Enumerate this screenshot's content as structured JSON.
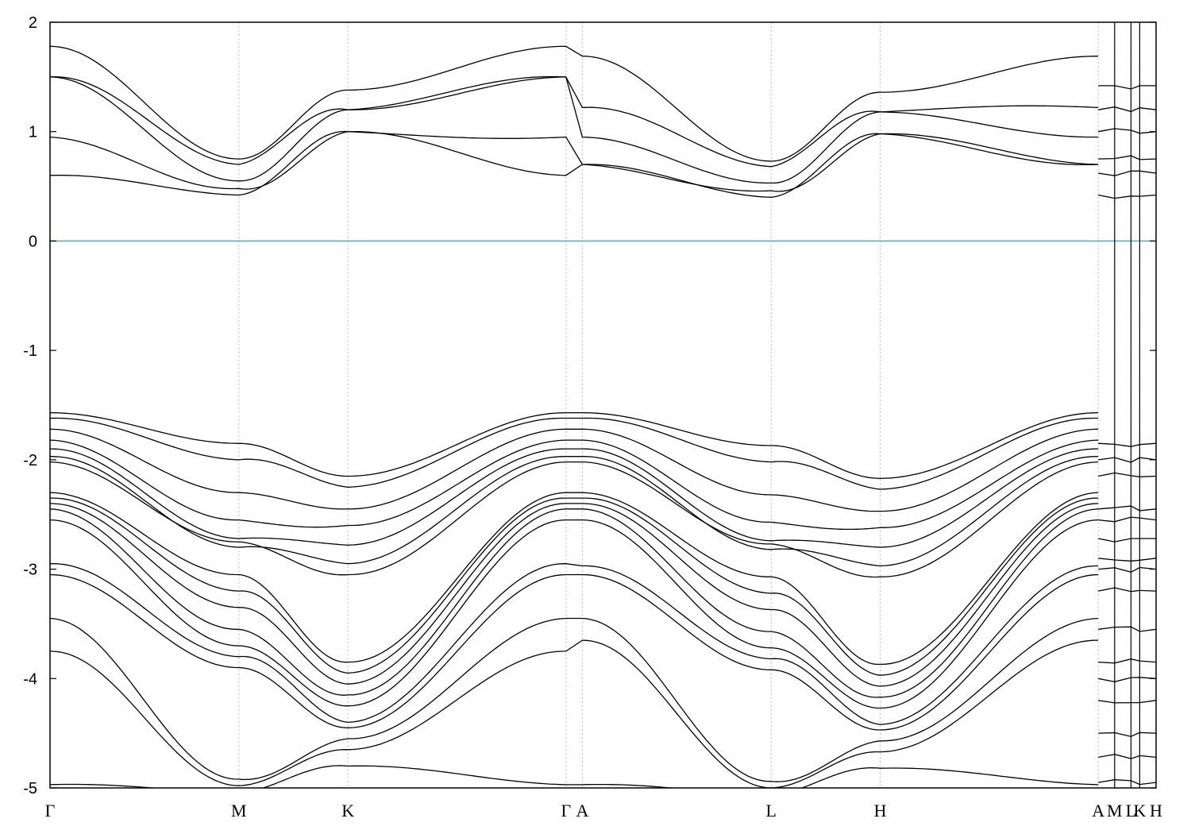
{
  "chart_data": {
    "type": "line",
    "ylim": [
      -5,
      2
    ],
    "y_ticks": [
      2,
      1,
      0,
      -1,
      -2,
      -3,
      -4,
      -5
    ],
    "y_tick_labels": [
      "2",
      "1",
      "0",
      "-1",
      "-2",
      "-3",
      "-4",
      "-5"
    ],
    "k_points": [
      {
        "label": "Γ",
        "x": 0
      },
      {
        "label": "M",
        "x": 1.732
      },
      {
        "label": "K",
        "x": 2.732
      },
      {
        "label": "Γ",
        "x": 4.732
      },
      {
        "label": "A",
        "x": 4.882
      },
      {
        "label": "L",
        "x": 6.614
      },
      {
        "label": "H",
        "x": 7.614
      },
      {
        "label": "A",
        "x": 9.614
      },
      {
        "label": "M",
        "x": 9.764
      },
      {
        "label": "L",
        "x": 9.914
      },
      {
        "label": "K",
        "x": 9.994
      },
      {
        "label": "H",
        "x": 10.144
      }
    ],
    "fermi_level": 0,
    "fermi_color": "#4fb3c8",
    "grid": "vertical dashed at k-points",
    "conduction_bands": [
      {
        "gamma": 1.78,
        "m": 0.75,
        "k": 1.38,
        "a": 1.69
      },
      {
        "gamma": 1.5,
        "m": 0.7,
        "k": 1.2,
        "a": 1.22
      },
      {
        "gamma": 1.5,
        "m": 0.55,
        "k": 1.2,
        "a": 0.95
      },
      {
        "gamma": 0.95,
        "m": 0.48,
        "k": 1.0,
        "a": 0.7
      },
      {
        "gamma": 0.6,
        "m": 0.42,
        "k": 1.0,
        "a": 0.7
      }
    ],
    "valence_bands": [
      {
        "gamma": -1.57,
        "m": -1.85,
        "k": -2.15,
        "a": -1.57
      },
      {
        "gamma": -1.62,
        "m": -2.0,
        "k": -2.25,
        "a": -1.62
      },
      {
        "gamma": -1.72,
        "m": -2.3,
        "k": -2.45,
        "a": -1.72
      },
      {
        "gamma": -1.82,
        "m": -2.55,
        "k": -2.6,
        "a": -1.82
      },
      {
        "gamma": -1.9,
        "m": -2.72,
        "k": -2.78,
        "a": -1.9
      },
      {
        "gamma": -1.97,
        "m": -2.8,
        "k": -2.95,
        "a": -1.97
      },
      {
        "gamma": -2.02,
        "m": -2.75,
        "k": -3.05,
        "a": -2.02
      },
      {
        "gamma": -2.3,
        "m": -3.05,
        "k": -3.85,
        "a": -2.3
      },
      {
        "gamma": -2.35,
        "m": -3.2,
        "k": -3.95,
        "a": -2.35
      },
      {
        "gamma": -2.4,
        "m": -3.35,
        "k": -4.05,
        "a": -2.4
      },
      {
        "gamma": -2.45,
        "m": -3.55,
        "k": -4.15,
        "a": -2.45
      },
      {
        "gamma": -2.55,
        "m": -3.7,
        "k": -4.25,
        "a": -2.55
      },
      {
        "gamma": -2.95,
        "m": -3.8,
        "k": -4.4,
        "a": -2.97
      },
      {
        "gamma": -3.05,
        "m": -3.9,
        "k": -4.45,
        "a": -3.05
      },
      {
        "gamma": -3.45,
        "m": -4.92,
        "k": -4.55,
        "a": -3.45
      },
      {
        "gamma": -3.75,
        "m": -4.98,
        "k": -4.65,
        "a": -3.65
      },
      {
        "gamma": -4.97,
        "m": -5.05,
        "k": -4.8,
        "a": -4.97
      }
    ],
    "right_panel_levels": [
      1.42,
      1.2,
      1.0,
      0.75,
      0.62,
      0.42,
      -1.85,
      -2.0,
      -2.15,
      -2.45,
      -2.55,
      -2.72,
      -2.9,
      -3.0,
      -3.2,
      -3.55,
      -3.85,
      -4.0,
      -4.2,
      -4.5,
      -4.72,
      -4.95
    ]
  }
}
